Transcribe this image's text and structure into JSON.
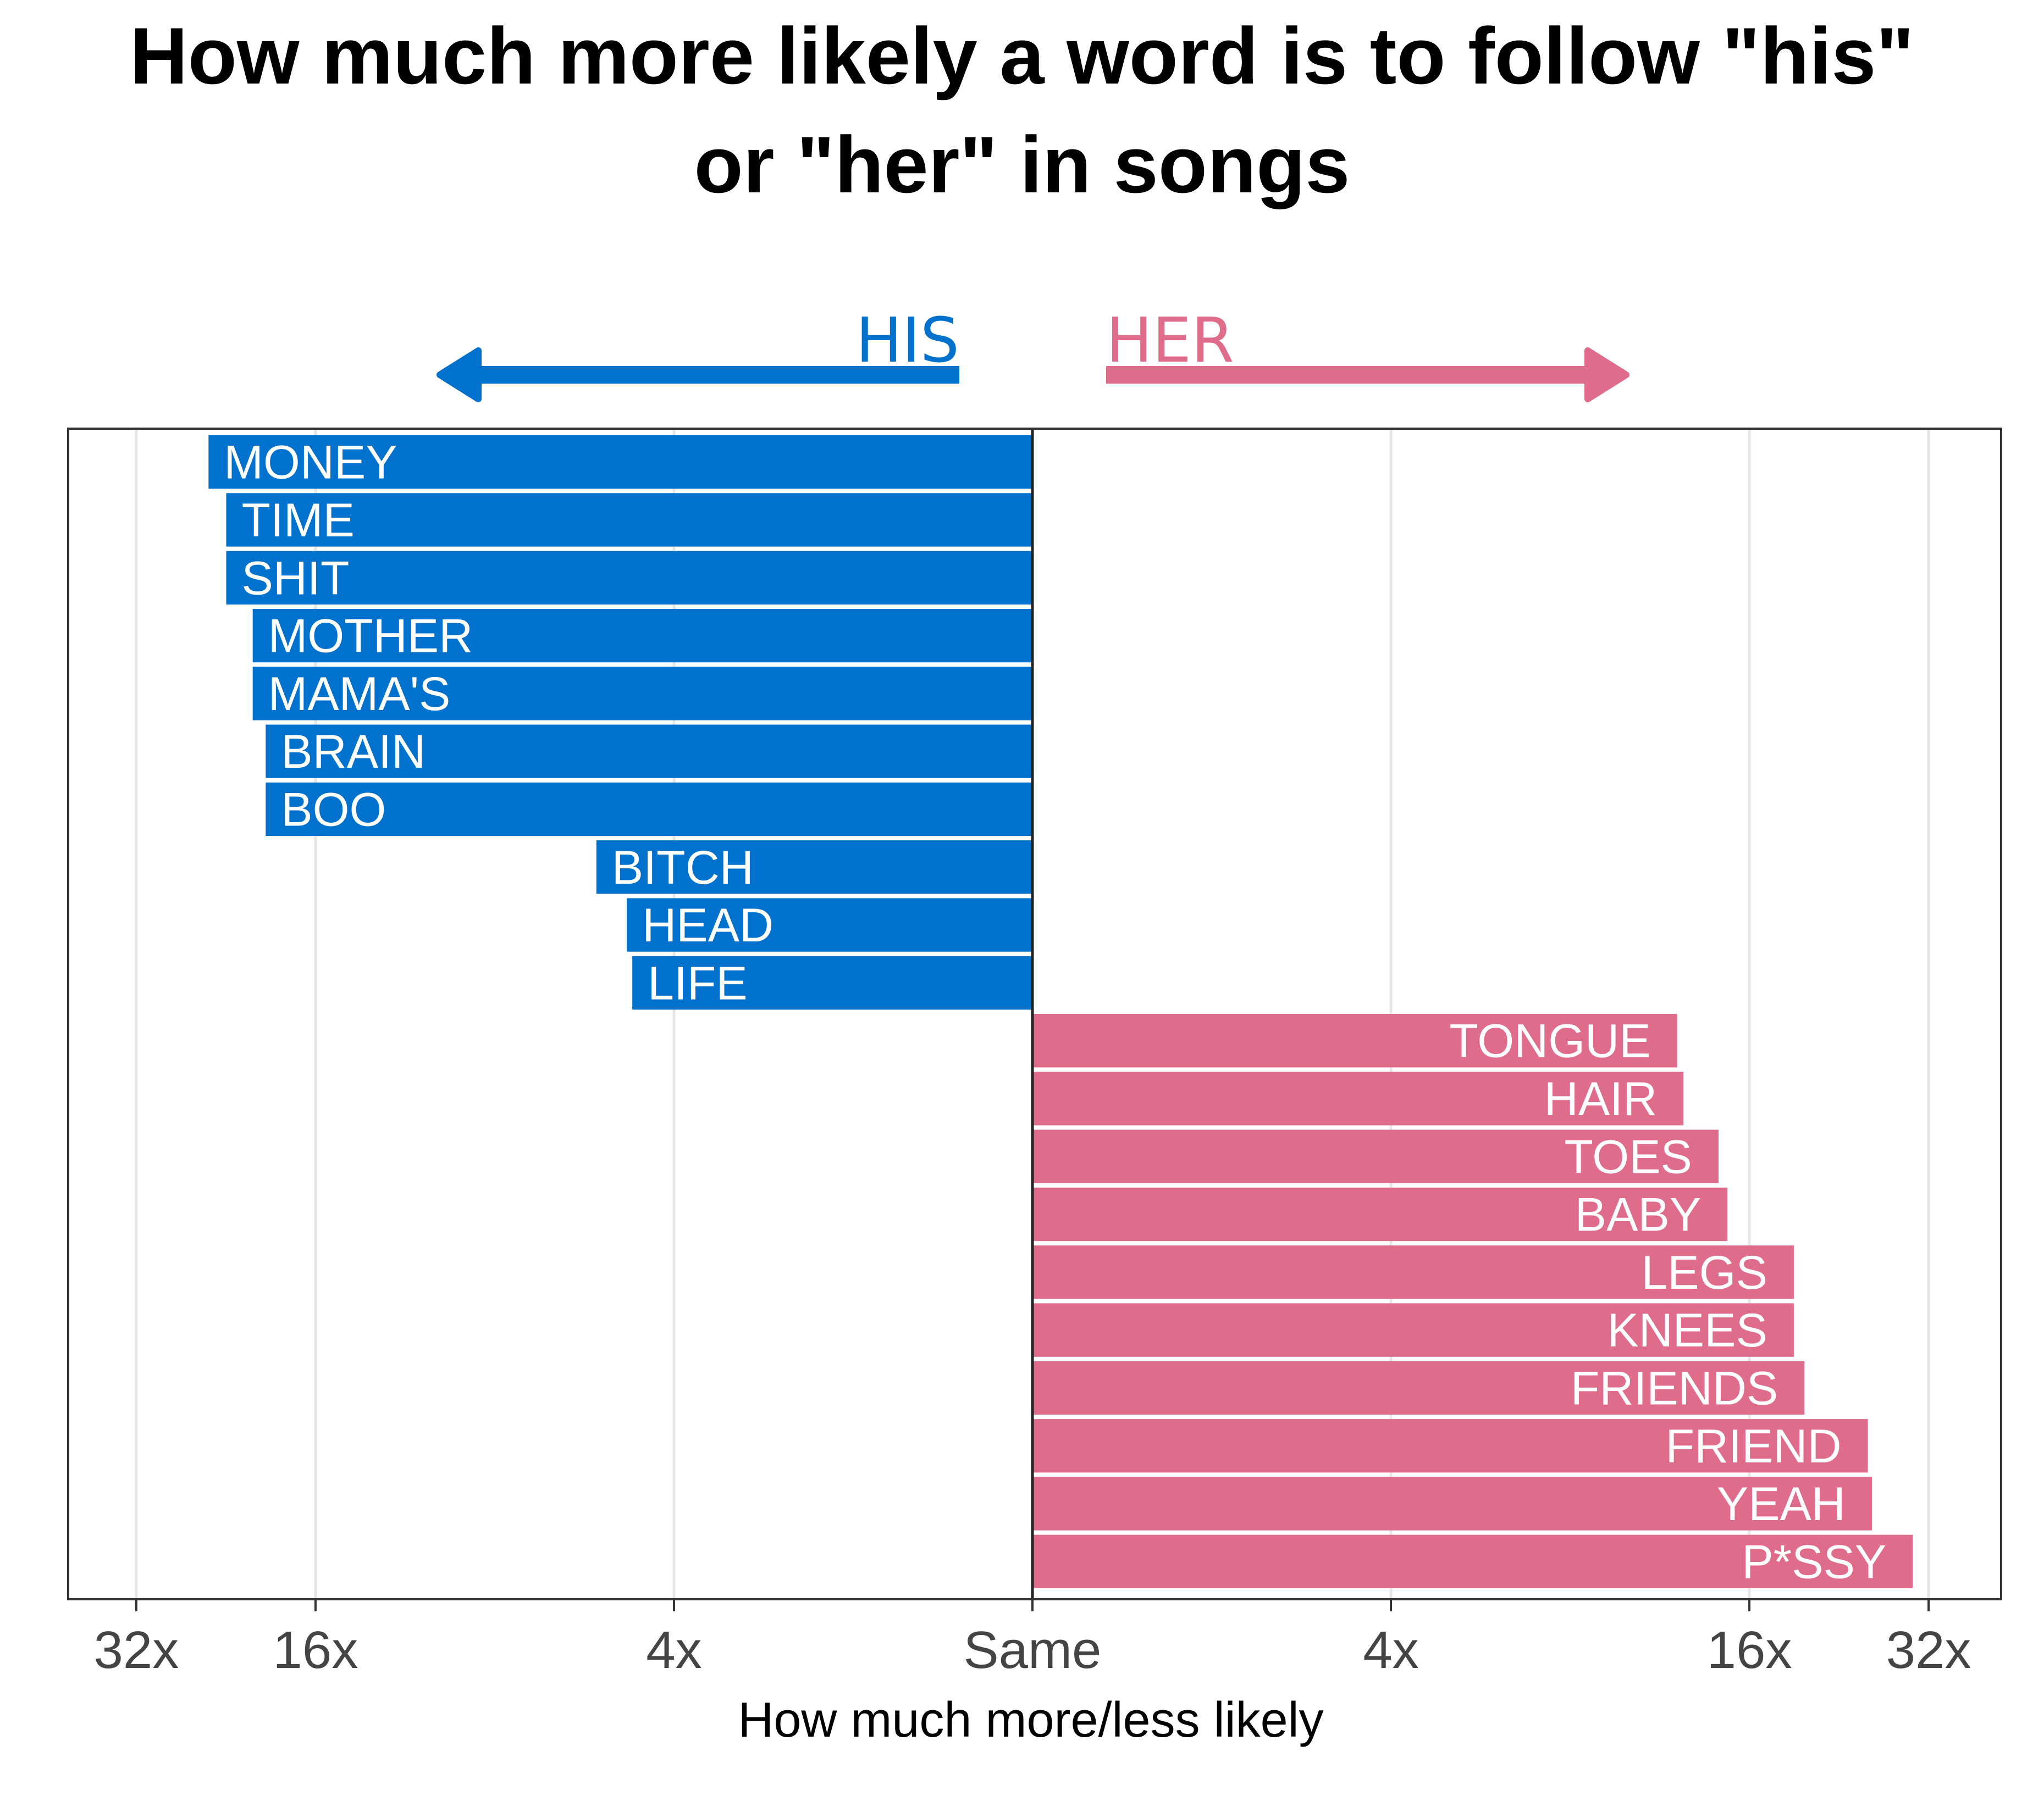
{
  "chart_data": {
    "type": "bar",
    "orientation": "horizontal",
    "title": "How much more likely a word is to follow \"his\" or \"her\" in songs",
    "xlabel": "How much more/less likely",
    "ylabel": "",
    "directions": {
      "left": {
        "label": "HIS",
        "color": "#0072CE"
      },
      "right": {
        "label": "HER",
        "color": "#E06C8C"
      }
    },
    "x_scale": "log2",
    "xlim": [
      -42,
      42
    ],
    "x_ticks": [
      {
        "value": -32,
        "label": "32x"
      },
      {
        "value": -16,
        "label": "16x"
      },
      {
        "value": -4,
        "label": "4x"
      },
      {
        "value": 1,
        "label": "Same"
      },
      {
        "value": 4,
        "label": "4x"
      },
      {
        "value": 16,
        "label": "16x"
      },
      {
        "value": 32,
        "label": "32x"
      }
    ],
    "grid": true,
    "legend": "none",
    "series": [
      {
        "side": "his",
        "color": "#0072CE",
        "categories": [
          "MONEY",
          "TIME",
          "SHIT",
          "MOTHER",
          "MAMA'S",
          "BRAIN",
          "BOO",
          "BITCH",
          "HEAD",
          "LIFE"
        ],
        "values": [
          24.2,
          22.6,
          22.6,
          20.4,
          20.4,
          19.4,
          19.4,
          5.4,
          4.8,
          4.7
        ]
      },
      {
        "side": "her",
        "color": "#E06C8C",
        "categories": [
          "TONGUE",
          "HAIR",
          "TOES",
          "BABY",
          "LEGS",
          "KNEES",
          "FRIENDS",
          "FRIEND",
          "YEAH",
          "P*SSY"
        ],
        "values": [
          12.1,
          12.4,
          14.2,
          14.7,
          19.0,
          19.0,
          19.8,
          25.3,
          25.7,
          30.1
        ]
      }
    ]
  }
}
